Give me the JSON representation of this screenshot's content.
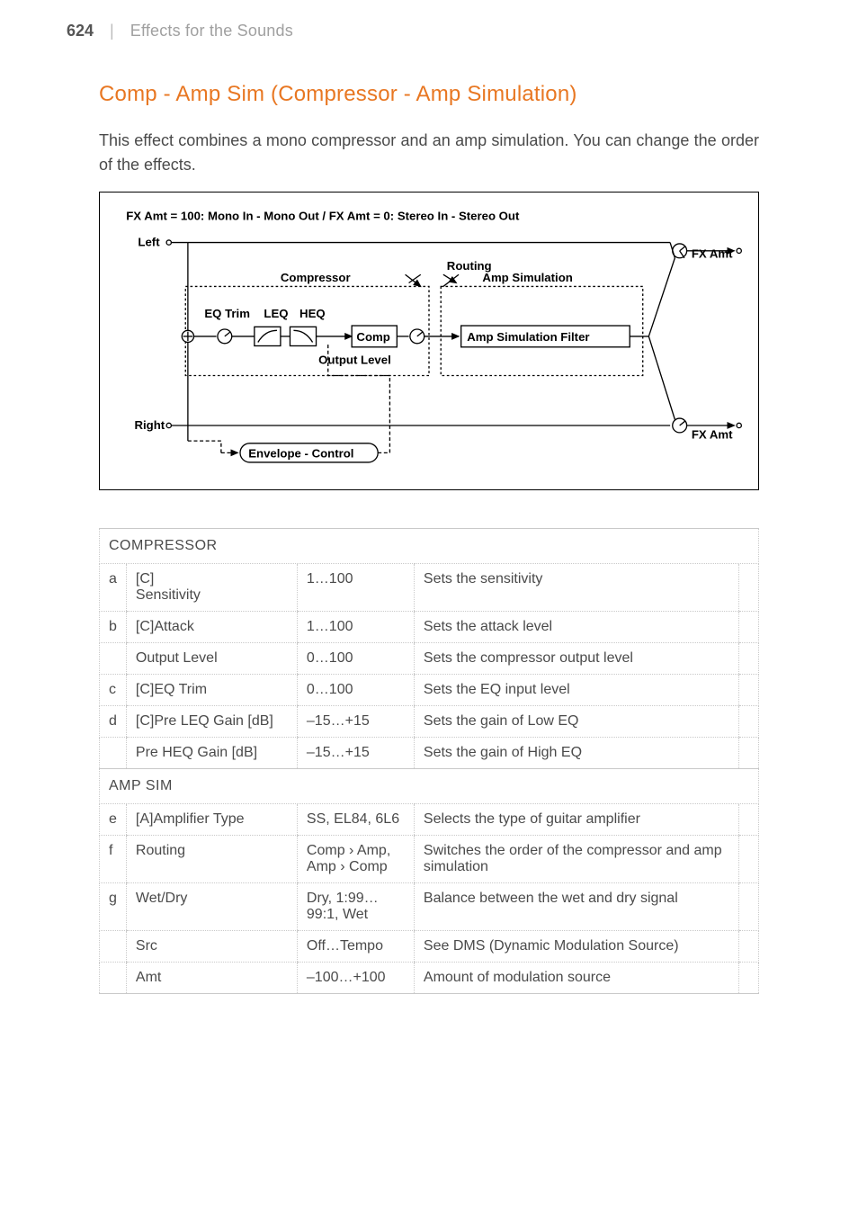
{
  "header": {
    "pageNumber": "624",
    "separator": "|",
    "breadcrumb": "Effects for the Sounds"
  },
  "title": "Comp - Amp Sim (Compressor - Amp Simulation)",
  "intro": "This effect combines a mono compressor and an amp simulation. You can change the order of the effects.",
  "diagram": {
    "topNote": "FX Amt = 100: Mono In - Mono Out  /  FX Amt = 0: Stereo In - Stereo Out",
    "left": "Left",
    "right": "Right",
    "fxAmt": "FX Amt",
    "routing": "Routing",
    "compressor": "Compressor",
    "ampSim": "Amp Simulation",
    "eqTrim": "EQ Trim",
    "leq": "LEQ",
    "heq": "HEQ",
    "comp": "Comp",
    "ampFilter": "Amp Simulation Filter",
    "outputLevel": "Output Level",
    "envelope": "Envelope - Control"
  },
  "table": {
    "sections": [
      {
        "title": "COMPRESSOR",
        "rows": [
          {
            "idx": "a",
            "name": "[C]\nSensitivity",
            "range": "1…100",
            "desc": "Sets the sensitivity"
          },
          {
            "idx": "b",
            "name": "[C]Attack",
            "range": "1…100",
            "desc": "Sets the attack level"
          },
          {
            "idx": "",
            "name": "Output Level",
            "range": "0…100",
            "desc": "Sets the compressor output level"
          },
          {
            "idx": "c",
            "name": "[C]EQ Trim",
            "range": "0…100",
            "desc": "Sets the EQ input level"
          },
          {
            "idx": "d",
            "name": "[C]Pre LEQ Gain [dB]",
            "range": "–15…+15",
            "desc": "Sets the gain of Low EQ"
          },
          {
            "idx": "",
            "name": "Pre HEQ Gain [dB]",
            "range": "–15…+15",
            "desc": "Sets the gain of High EQ"
          }
        ]
      },
      {
        "title": "AMP SIM",
        "rows": [
          {
            "idx": "e",
            "name": "[A]Amplifier Type",
            "range": "SS, EL84, 6L6",
            "desc": "Selects the type of guitar amplifier"
          },
          {
            "idx": "f",
            "name": "Routing",
            "range": "Comp › Amp, Amp › Comp",
            "desc": "Switches the order of the compressor and amp simulation"
          },
          {
            "idx": "g",
            "name": "Wet/Dry",
            "range": "Dry, 1:99…99:1, Wet",
            "desc": "Balance between the wet and dry signal"
          },
          {
            "idx": "",
            "name": "Src",
            "range": "Off…Tempo",
            "desc": "See DMS (Dynamic Modulation Source)"
          },
          {
            "idx": "",
            "name": "Amt",
            "range": "–100…+100",
            "desc": "Amount of modulation source"
          }
        ]
      }
    ]
  }
}
